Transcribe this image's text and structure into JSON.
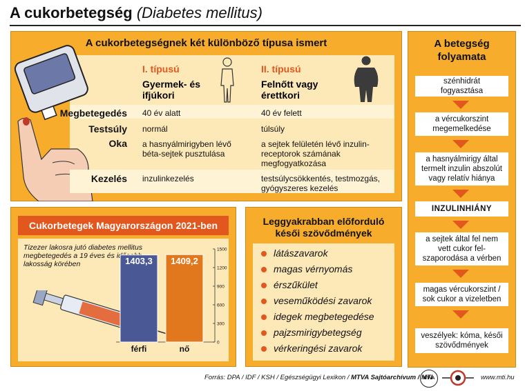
{
  "header": {
    "title_main": "A cukorbetegség",
    "title_latin": "(Diabetes mellitus)"
  },
  "types_panel": {
    "heading": "A cukorbetegségnek két különböző típusa ismert",
    "type1": {
      "label": "I. típusú",
      "name": "Gyermek- és ifjúkori"
    },
    "type2": {
      "label": "II. típusú",
      "name": "Felnőtt vagy érettkori"
    },
    "rows": [
      {
        "label": "Megbetegedés",
        "type1": "40 év alatt",
        "type2": "40 év felett"
      },
      {
        "label": "Testsúly",
        "type1": "normál",
        "type2": "túlsúly"
      },
      {
        "label": "Oka",
        "type1": "a hasnyálmirigyben lévő béta-sejtek pusztulása",
        "type2": "a sejtek felületén lévő inzulin-receptorok számának megfogyatkozása"
      },
      {
        "label": "Kezelés",
        "type1": "inzulinkezelés",
        "type2": "testsúlycsökkentés, testmozgás, gyógyszeres kezelés"
      }
    ]
  },
  "process_panel": {
    "heading": "A betegség folyamata",
    "steps": [
      "szénhidrát fogyasztása",
      "a vércukorszint megemelkedése",
      "a hasnyálmirigy által termelt inzulin abszolút vagy relatív hiánya",
      "INZULINHIÁNY",
      "a sejtek által fel nem vett cukor fel-szaporodása a vérben",
      "magas vércukorszint / sok cukor a vizeletben",
      "veszélyek: kóma, késői szövődmények"
    ]
  },
  "chart_panel": {
    "heading": "Cukorbetegek Magyarországon 2021-ben",
    "note": "Tizezer lakosra jutó diabetes mellitus megbetegedés a 19 éves és idősebb lakosság körében"
  },
  "chart_data": {
    "type": "bar",
    "title": "Cukorbetegek Magyarországon 2021-ben",
    "categories": [
      "férfi",
      "nő"
    ],
    "values": [
      1403.3,
      1409.2
    ],
    "value_labels": [
      "1403,3",
      "1409,2"
    ],
    "ylim": [
      0,
      1500
    ],
    "yticks": [
      "0",
      "300",
      "600",
      "900",
      "1200",
      "1500"
    ],
    "colors": [
      "#4a5896",
      "#e2781d"
    ]
  },
  "complications_panel": {
    "heading": "Leggyakrabban előforduló késői szövődmények",
    "items": [
      "látászavarok",
      "magas vérnyomás",
      "érszűkület",
      "veseműködési zavarok",
      "idegek megbetegedése",
      "pajzsmirigybetegség",
      "vérkeringési zavarok"
    ]
  },
  "footer": {
    "source": "Forrás: DPA / IDF / KSH / Egészségügyi Lexikon / ",
    "agency": "MTVA Sajtóarchívum / MTI",
    "logo_text": "MTVA",
    "url": "www.mti.hu"
  },
  "colors": {
    "panel": "#f7ad2b",
    "accent": "#e2571d",
    "bar_male": "#4a5896",
    "bar_female": "#e2781d"
  }
}
